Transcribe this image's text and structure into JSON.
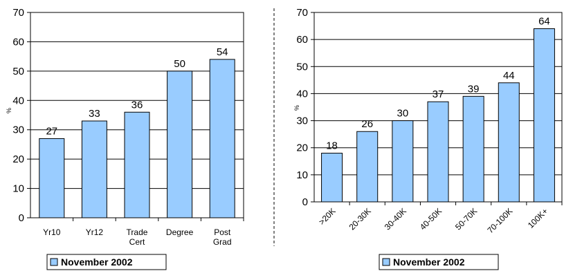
{
  "chart_data": [
    {
      "type": "bar",
      "categories": [
        "Yr10",
        "Yr12",
        "Trade Cert",
        "Degree",
        "Post Grad"
      ],
      "series": [
        {
          "name": "November 2002",
          "values": [
            27,
            33,
            36,
            50,
            54
          ]
        }
      ],
      "title": "",
      "xlabel": "",
      "ylabel": "%",
      "ylim": [
        0,
        70
      ],
      "yticks": [
        0,
        10,
        20,
        30,
        40,
        50,
        60,
        70
      ],
      "grid": true,
      "legend": "bottom-left",
      "bar_color": "#99ccff"
    },
    {
      "type": "bar",
      "categories": [
        ">20K",
        "20-30K",
        "30-40K",
        "40-50K",
        "50-70K",
        "70-100K",
        "100K+"
      ],
      "series": [
        {
          "name": "November 2002",
          "values": [
            18,
            26,
            30,
            37,
            39,
            44,
            64
          ]
        }
      ],
      "title": "",
      "xlabel": "",
      "ylabel": "%",
      "ylim": [
        0,
        70
      ],
      "yticks": [
        0,
        10,
        20,
        30,
        40,
        50,
        60,
        70
      ],
      "grid": true,
      "legend": "bottom-center",
      "bar_color": "#99ccff"
    }
  ]
}
